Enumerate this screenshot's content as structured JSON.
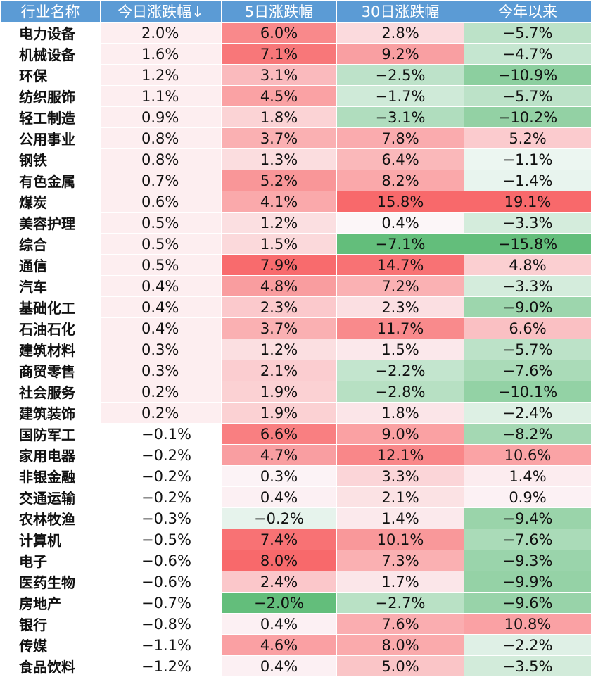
{
  "table": {
    "headers": [
      "行业名称",
      "今日涨跌幅↓",
      "5日涨跌幅",
      "30日涨跌幅",
      "今年以来"
    ],
    "rows": [
      {
        "name": "电力设备",
        "today": "2.0%",
        "d5": "6.0%",
        "d30": "2.8%",
        "ytd": "−5.7%"
      },
      {
        "name": "机械设备",
        "today": "1.6%",
        "d5": "7.1%",
        "d30": "9.2%",
        "ytd": "−4.7%"
      },
      {
        "name": "环保",
        "today": "1.2%",
        "d5": "3.1%",
        "d30": "−2.5%",
        "ytd": "−10.9%"
      },
      {
        "name": "纺织服饰",
        "today": "1.1%",
        "d5": "4.5%",
        "d30": "−1.7%",
        "ytd": "−5.7%"
      },
      {
        "name": "轻工制造",
        "today": "0.9%",
        "d5": "1.8%",
        "d30": "−3.1%",
        "ytd": "−10.2%"
      },
      {
        "name": "公用事业",
        "today": "0.8%",
        "d5": "3.7%",
        "d30": "7.8%",
        "ytd": "5.2%"
      },
      {
        "name": "钢铁",
        "today": "0.8%",
        "d5": "1.3%",
        "d30": "6.4%",
        "ytd": "−1.1%"
      },
      {
        "name": "有色金属",
        "today": "0.7%",
        "d5": "5.2%",
        "d30": "8.2%",
        "ytd": "−1.4%"
      },
      {
        "name": "煤炭",
        "today": "0.6%",
        "d5": "4.1%",
        "d30": "15.8%",
        "ytd": "19.1%"
      },
      {
        "name": "美容护理",
        "today": "0.5%",
        "d5": "1.2%",
        "d30": "0.4%",
        "ytd": "−3.3%"
      },
      {
        "name": "综合",
        "today": "0.5%",
        "d5": "1.5%",
        "d30": "−7.1%",
        "ytd": "−15.8%"
      },
      {
        "name": "通信",
        "today": "0.5%",
        "d5": "7.9%",
        "d30": "14.7%",
        "ytd": "4.8%"
      },
      {
        "name": "汽车",
        "today": "0.4%",
        "d5": "4.8%",
        "d30": "7.2%",
        "ytd": "−3.3%"
      },
      {
        "name": "基础化工",
        "today": "0.4%",
        "d5": "2.3%",
        "d30": "2.3%",
        "ytd": "−9.0%"
      },
      {
        "name": "石油石化",
        "today": "0.4%",
        "d5": "3.7%",
        "d30": "11.7%",
        "ytd": "6.6%"
      },
      {
        "name": "建筑材料",
        "today": "0.3%",
        "d5": "1.2%",
        "d30": "1.5%",
        "ytd": "−5.7%"
      },
      {
        "name": "商贸零售",
        "today": "0.3%",
        "d5": "2.1%",
        "d30": "−2.2%",
        "ytd": "−7.6%"
      },
      {
        "name": "社会服务",
        "today": "0.2%",
        "d5": "1.9%",
        "d30": "−2.8%",
        "ytd": "−10.1%"
      },
      {
        "name": "建筑装饰",
        "today": "0.2%",
        "d5": "1.9%",
        "d30": "1.8%",
        "ytd": "−2.4%"
      },
      {
        "name": "国防军工",
        "today": "−0.1%",
        "d5": "6.6%",
        "d30": "9.0%",
        "ytd": "−8.2%"
      },
      {
        "name": "家用电器",
        "today": "−0.2%",
        "d5": "4.7%",
        "d30": "12.1%",
        "ytd": "10.6%"
      },
      {
        "name": "非银金融",
        "today": "−0.2%",
        "d5": "0.3%",
        "d30": "3.3%",
        "ytd": "1.4%"
      },
      {
        "name": "交通运输",
        "today": "−0.2%",
        "d5": "0.4%",
        "d30": "2.1%",
        "ytd": "0.9%"
      },
      {
        "name": "农林牧渔",
        "today": "−0.3%",
        "d5": "−0.2%",
        "d30": "1.4%",
        "ytd": "−9.4%"
      },
      {
        "name": "计算机",
        "today": "−0.5%",
        "d5": "7.4%",
        "d30": "10.1%",
        "ytd": "−7.6%"
      },
      {
        "name": "电子",
        "today": "−0.6%",
        "d5": "8.0%",
        "d30": "7.3%",
        "ytd": "−9.3%"
      },
      {
        "name": "医药生物",
        "today": "−0.6%",
        "d5": "2.4%",
        "d30": "1.7%",
        "ytd": "−9.9%"
      },
      {
        "name": "房地产",
        "today": "−0.7%",
        "d5": "−2.0%",
        "d30": "−2.7%",
        "ytd": "−9.6%"
      },
      {
        "name": "银行",
        "today": "−0.8%",
        "d5": "0.4%",
        "d30": "7.6%",
        "ytd": "10.8%"
      },
      {
        "name": "传媒",
        "today": "−1.1%",
        "d5": "4.6%",
        "d30": "8.0%",
        "ytd": "−2.2%"
      },
      {
        "name": "食品饮料",
        "today": "−1.2%",
        "d5": "0.4%",
        "d30": "5.0%",
        "ytd": "−3.5%"
      }
    ]
  },
  "colors": {
    "header_bg": "#5b9bd5",
    "header_text": "#ffffff",
    "positive_max": "#f8696b",
    "negative_max": "#63be7b",
    "neutral": "#fcfcff"
  }
}
